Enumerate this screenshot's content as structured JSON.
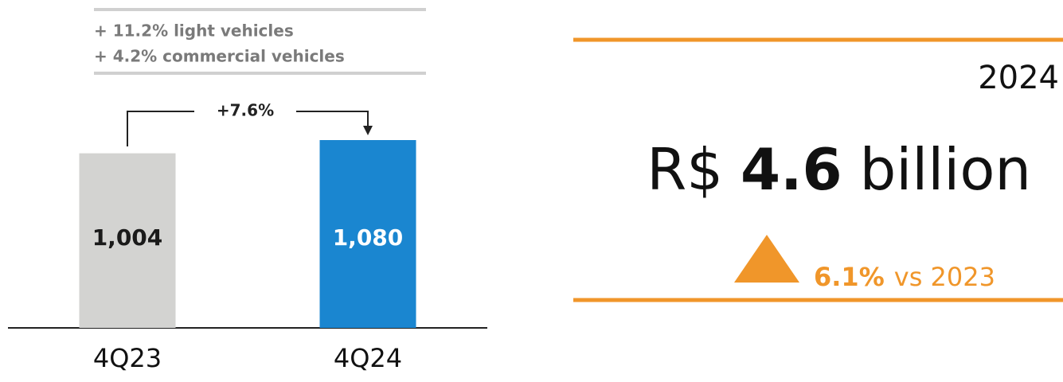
{
  "chart_data": {
    "type": "bar",
    "notes": [
      "+ 11.2% light vehicles",
      "+ 4.2% commercial vehicles"
    ],
    "annotation": "+7.6%",
    "categories": [
      "4Q23",
      "4Q24"
    ],
    "values": [
      1004,
      1080
    ],
    "value_labels": [
      "1,004",
      "1,080"
    ],
    "colors": [
      "#d3d3d1",
      "#1a86d0"
    ],
    "label_colors": [
      "#1a1a1a",
      "#ffffff"
    ]
  },
  "kpi": {
    "year": "2024",
    "currency": "R$",
    "amount": "4.6",
    "unit": "billion",
    "change": "6.1%",
    "comparison": "vs 2023",
    "color": "#f0962a"
  }
}
